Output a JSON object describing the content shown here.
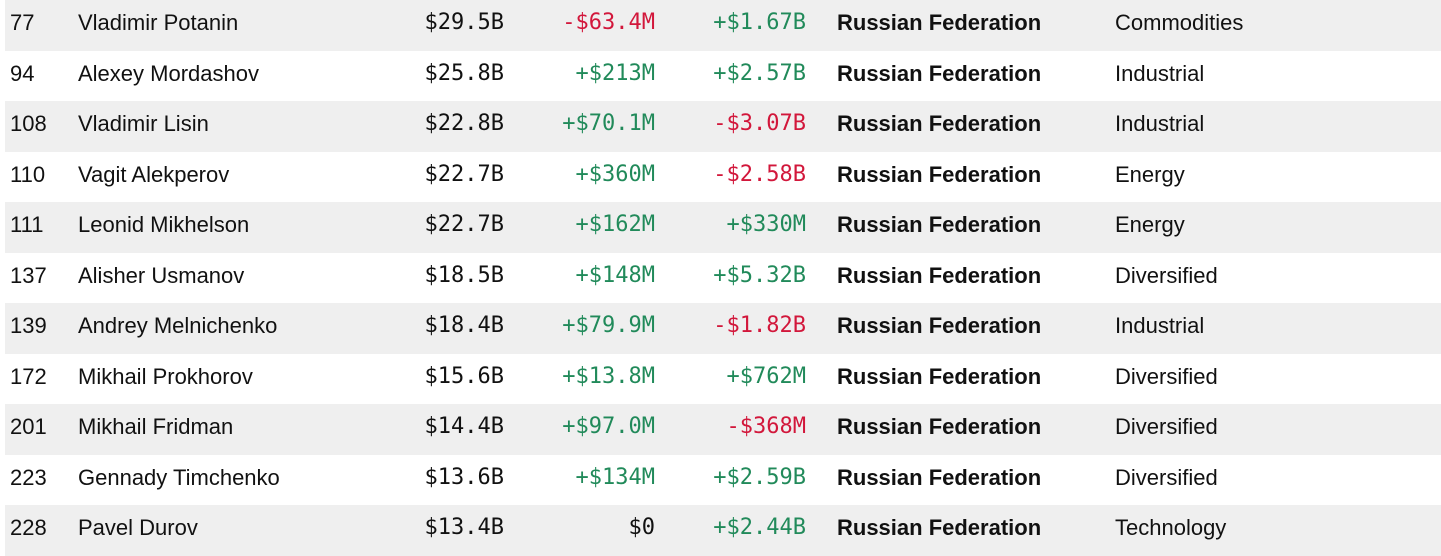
{
  "colors": {
    "positive": "#218a5a",
    "negative": "#d2173b",
    "row_shade": "#efefef",
    "text": "#111111"
  },
  "rows": [
    {
      "rank": "77",
      "name": "Vladimir Potanin",
      "net_worth": "$29.5B",
      "last_change": "-$63.4M",
      "ytd_change": "+$1.67B",
      "country": "Russian Federation",
      "industry": "Commodities"
    },
    {
      "rank": "94",
      "name": "Alexey Mordashov",
      "net_worth": "$25.8B",
      "last_change": "+$213M",
      "ytd_change": "+$2.57B",
      "country": "Russian Federation",
      "industry": "Industrial"
    },
    {
      "rank": "108",
      "name": "Vladimir Lisin",
      "net_worth": "$22.8B",
      "last_change": "+$70.1M",
      "ytd_change": "-$3.07B",
      "country": "Russian Federation",
      "industry": "Industrial"
    },
    {
      "rank": "110",
      "name": "Vagit Alekperov",
      "net_worth": "$22.7B",
      "last_change": "+$360M",
      "ytd_change": "-$2.58B",
      "country": "Russian Federation",
      "industry": "Energy"
    },
    {
      "rank": "111",
      "name": "Leonid Mikhelson",
      "net_worth": "$22.7B",
      "last_change": "+$162M",
      "ytd_change": "+$330M",
      "country": "Russian Federation",
      "industry": "Energy"
    },
    {
      "rank": "137",
      "name": "Alisher Usmanov",
      "net_worth": "$18.5B",
      "last_change": "+$148M",
      "ytd_change": "+$5.32B",
      "country": "Russian Federation",
      "industry": "Diversified"
    },
    {
      "rank": "139",
      "name": "Andrey Melnichenko",
      "net_worth": "$18.4B",
      "last_change": "+$79.9M",
      "ytd_change": "-$1.82B",
      "country": "Russian Federation",
      "industry": "Industrial"
    },
    {
      "rank": "172",
      "name": "Mikhail Prokhorov",
      "net_worth": "$15.6B",
      "last_change": "+$13.8M",
      "ytd_change": "+$762M",
      "country": "Russian Federation",
      "industry": "Diversified"
    },
    {
      "rank": "201",
      "name": "Mikhail Fridman",
      "net_worth": "$14.4B",
      "last_change": "+$97.0M",
      "ytd_change": "-$368M",
      "country": "Russian Federation",
      "industry": "Diversified"
    },
    {
      "rank": "223",
      "name": "Gennady Timchenko",
      "net_worth": "$13.6B",
      "last_change": "+$134M",
      "ytd_change": "+$2.59B",
      "country": "Russian Federation",
      "industry": "Diversified"
    },
    {
      "rank": "228",
      "name": "Pavel Durov",
      "net_worth": "$13.4B",
      "last_change": "$0",
      "ytd_change": "+$2.44B",
      "country": "Russian Federation",
      "industry": "Technology"
    }
  ]
}
